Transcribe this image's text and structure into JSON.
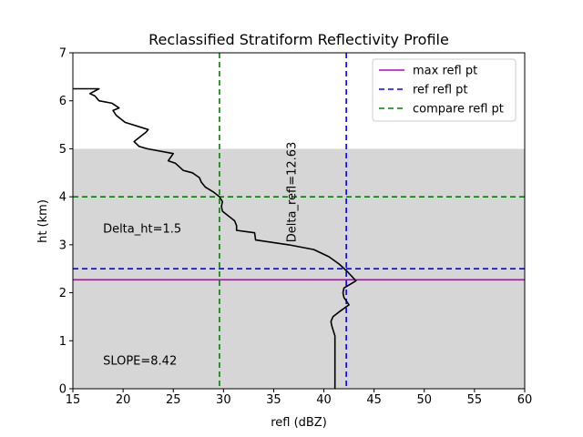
{
  "chart_data": {
    "type": "line",
    "title": "Reclassified Stratiform Reflectivity Profile",
    "xlabel": "refl (dBZ)",
    "ylabel": "ht (km)",
    "xlim": [
      15,
      60
    ],
    "ylim": [
      0,
      7
    ],
    "xticks": [
      15,
      20,
      25,
      30,
      35,
      40,
      45,
      50,
      55,
      60
    ],
    "yticks": [
      0,
      1,
      2,
      3,
      4,
      5,
      6,
      7
    ],
    "grid": false,
    "shaded_band": {
      "y_from": 0,
      "y_to": 5,
      "color": "#d6d6d6"
    },
    "series": [
      {
        "name": "profile",
        "color": "#000000",
        "points": [
          [
            41.1,
            0.0
          ],
          [
            41.1,
            0.5
          ],
          [
            41.1,
            1.0
          ],
          [
            41.1,
            1.1
          ],
          [
            40.8,
            1.3
          ],
          [
            40.7,
            1.4
          ],
          [
            40.9,
            1.5
          ],
          [
            41.5,
            1.6
          ],
          [
            42.5,
            1.75
          ],
          [
            42.0,
            1.9
          ],
          [
            41.9,
            2.0
          ],
          [
            42.0,
            2.1
          ],
          [
            43.2,
            2.25
          ],
          [
            42.3,
            2.45
          ],
          [
            41.5,
            2.6
          ],
          [
            40.5,
            2.75
          ],
          [
            39.0,
            2.9
          ],
          [
            36.5,
            3.0
          ],
          [
            33.2,
            3.1
          ],
          [
            33.1,
            3.25
          ],
          [
            31.3,
            3.3
          ],
          [
            31.3,
            3.4
          ],
          [
            31.1,
            3.5
          ],
          [
            30.5,
            3.6
          ],
          [
            29.9,
            3.7
          ],
          [
            29.8,
            3.8
          ],
          [
            29.9,
            3.9
          ],
          [
            29.6,
            4.0
          ],
          [
            29.0,
            4.1
          ],
          [
            28.2,
            4.2
          ],
          [
            27.8,
            4.3
          ],
          [
            27.6,
            4.4
          ],
          [
            26.9,
            4.5
          ],
          [
            26.0,
            4.55
          ],
          [
            25.2,
            4.7
          ],
          [
            24.5,
            4.75
          ],
          [
            25.0,
            4.9
          ],
          [
            22.4,
            5.0
          ],
          [
            21.6,
            5.05
          ],
          [
            21.1,
            5.15
          ],
          [
            22.3,
            5.35
          ],
          [
            22.5,
            5.4
          ],
          [
            20.2,
            5.55
          ],
          [
            19.3,
            5.7
          ],
          [
            19.0,
            5.8
          ],
          [
            19.6,
            5.85
          ],
          [
            18.9,
            5.95
          ],
          [
            17.6,
            6.0
          ],
          [
            17.2,
            6.1
          ],
          [
            16.7,
            6.15
          ],
          [
            17.6,
            6.25
          ],
          [
            15.0,
            6.25
          ]
        ]
      }
    ],
    "reference_lines": [
      {
        "name": "max refl pt",
        "orientation": "horizontal",
        "value": 2.27,
        "color": "#bf00bf",
        "style": "solid"
      },
      {
        "name": "ref refl pt",
        "orientation": "horizontal",
        "value": 2.5,
        "color": "#0000ff",
        "style": "dashed"
      },
      {
        "name": "ref refl pt",
        "orientation": "vertical",
        "value": 42.23,
        "color": "#0000ff",
        "style": "dashed"
      },
      {
        "name": "compare refl pt",
        "orientation": "horizontal",
        "value": 4.0,
        "color": "#008000",
        "style": "dashed"
      },
      {
        "name": "compare refl pt",
        "orientation": "vertical",
        "value": 29.6,
        "color": "#008000",
        "style": "dashed"
      }
    ],
    "annotations": [
      {
        "text": "Delta_ht=1.5",
        "x": 18,
        "y": 3.25,
        "rotation": 0
      },
      {
        "text": "SLOPE=8.42",
        "x": 18,
        "y": 0.5,
        "rotation": 0
      },
      {
        "text": "Delta_refl=12.63",
        "x": 37.2,
        "y": 3.05,
        "rotation": -90
      }
    ],
    "legend": {
      "position": "top-right",
      "entries": [
        {
          "label": "max refl pt",
          "color": "#bf00bf",
          "style": "solid"
        },
        {
          "label": "ref refl pt",
          "color": "#0000ff",
          "style": "dashed"
        },
        {
          "label": "compare refl pt",
          "color": "#008000",
          "style": "dashed"
        }
      ]
    }
  }
}
